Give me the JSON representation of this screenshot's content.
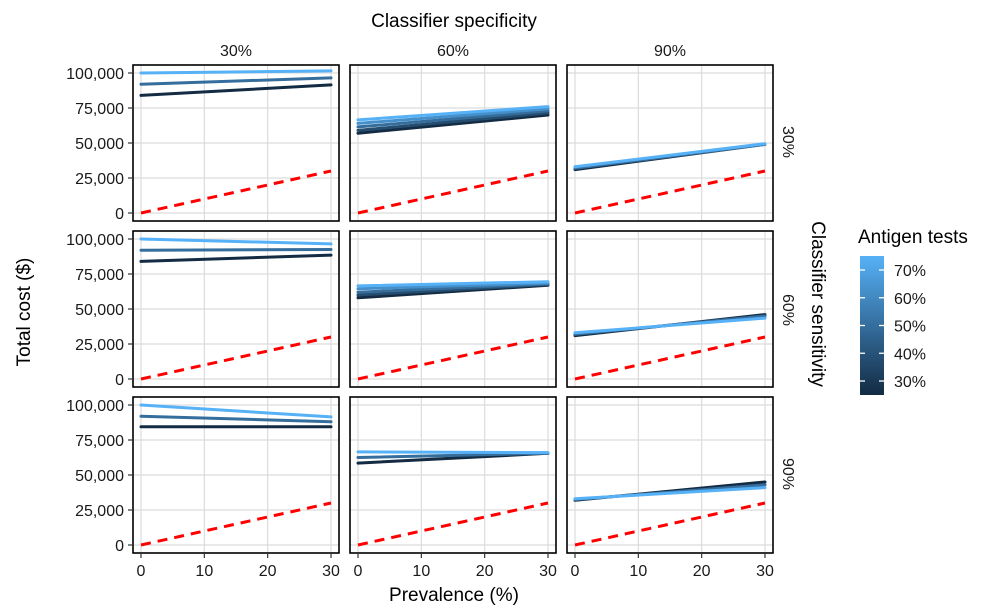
{
  "chart_data": {
    "type": "line",
    "top_strip_title": "Classifier specificity",
    "right_strip_title": "Classifier sensitivity",
    "xlabel": "Prevalence (%)",
    "ylabel": "Total cost ($)",
    "col_labels": [
      "30%",
      "60%",
      "90%"
    ],
    "row_labels": [
      "30%",
      "60%",
      "90%"
    ],
    "xlim": [
      0,
      30
    ],
    "ylim": [
      0,
      100000
    ],
    "x_ticks": [
      0,
      10,
      20,
      30
    ],
    "x_tick_labels": [
      "0",
      "10",
      "20",
      "30"
    ],
    "y_ticks": [
      0,
      25000,
      50000,
      75000,
      100000
    ],
    "y_tick_labels": [
      "0",
      "25,000",
      "50,000",
      "75,000",
      "100,000"
    ],
    "grid": true,
    "legend": {
      "title": "Antigen tests",
      "position": "right",
      "labels": [
        "70%",
        "60%",
        "50%",
        "40%",
        "30%"
      ],
      "color_high": "#56B1F7",
      "color_low": "#132B43"
    },
    "reference_line": {
      "color": "#ff0000",
      "style": "dashed",
      "x": [
        0,
        30
      ],
      "y": [
        0,
        30000
      ]
    },
    "x": [
      0,
      30
    ],
    "panels": [
      {
        "row": 0,
        "col": 0,
        "series": [
          {
            "level": 0.3,
            "values": [
              84000,
              91500
            ]
          },
          {
            "level": 0.5,
            "values": [
              92000,
              96500
            ]
          },
          {
            "level": 0.7,
            "values": [
              100000,
              101500
            ]
          }
        ]
      },
      {
        "row": 0,
        "col": 1,
        "series": [
          {
            "level": 0.3,
            "values": [
              57000,
              70000
            ]
          },
          {
            "level": 0.4,
            "values": [
              59000,
              71500
            ]
          },
          {
            "level": 0.5,
            "values": [
              61500,
              73000
            ]
          },
          {
            "level": 0.6,
            "values": [
              64000,
              74500
            ]
          },
          {
            "level": 0.7,
            "values": [
              66500,
              76000
            ]
          }
        ]
      },
      {
        "row": 0,
        "col": 2,
        "series": [
          {
            "level": 0.3,
            "values": [
              31000,
              49000
            ]
          },
          {
            "level": 0.5,
            "values": [
              32000,
              49000
            ]
          },
          {
            "level": 0.7,
            "values": [
              33000,
              49500
            ]
          }
        ]
      },
      {
        "row": 1,
        "col": 0,
        "series": [
          {
            "level": 0.3,
            "values": [
              84000,
              88500
            ]
          },
          {
            "level": 0.5,
            "values": [
              92000,
              92500
            ]
          },
          {
            "level": 0.7,
            "values": [
              100000,
              96500
            ]
          }
        ]
      },
      {
        "row": 1,
        "col": 1,
        "series": [
          {
            "level": 0.3,
            "values": [
              58000,
              67000
            ]
          },
          {
            "level": 0.4,
            "values": [
              60000,
              67500
            ]
          },
          {
            "level": 0.5,
            "values": [
              62000,
              68000
            ]
          },
          {
            "level": 0.6,
            "values": [
              64500,
              68500
            ]
          },
          {
            "level": 0.7,
            "values": [
              66500,
              69500
            ]
          }
        ]
      },
      {
        "row": 1,
        "col": 2,
        "series": [
          {
            "level": 0.3,
            "values": [
              31000,
              46000
            ]
          },
          {
            "level": 0.5,
            "values": [
              32000,
              45000
            ]
          },
          {
            "level": 0.7,
            "values": [
              33000,
              43500
            ]
          }
        ]
      },
      {
        "row": 2,
        "col": 0,
        "series": [
          {
            "level": 0.3,
            "values": [
              84500,
              84500
            ]
          },
          {
            "level": 0.5,
            "values": [
              92000,
              88000
            ]
          },
          {
            "level": 0.7,
            "values": [
              100000,
              91500
            ]
          }
        ]
      },
      {
        "row": 2,
        "col": 1,
        "series": [
          {
            "level": 0.3,
            "values": [
              58500,
              65500
            ]
          },
          {
            "level": 0.5,
            "values": [
              62500,
              65500
            ]
          },
          {
            "level": 0.7,
            "values": [
              66500,
              66000
            ]
          }
        ]
      },
      {
        "row": 2,
        "col": 2,
        "series": [
          {
            "level": 0.3,
            "values": [
              32000,
              45000
            ]
          },
          {
            "level": 0.5,
            "values": [
              32500,
              43000
            ]
          },
          {
            "level": 0.7,
            "values": [
              33000,
              41000
            ]
          }
        ]
      }
    ]
  }
}
